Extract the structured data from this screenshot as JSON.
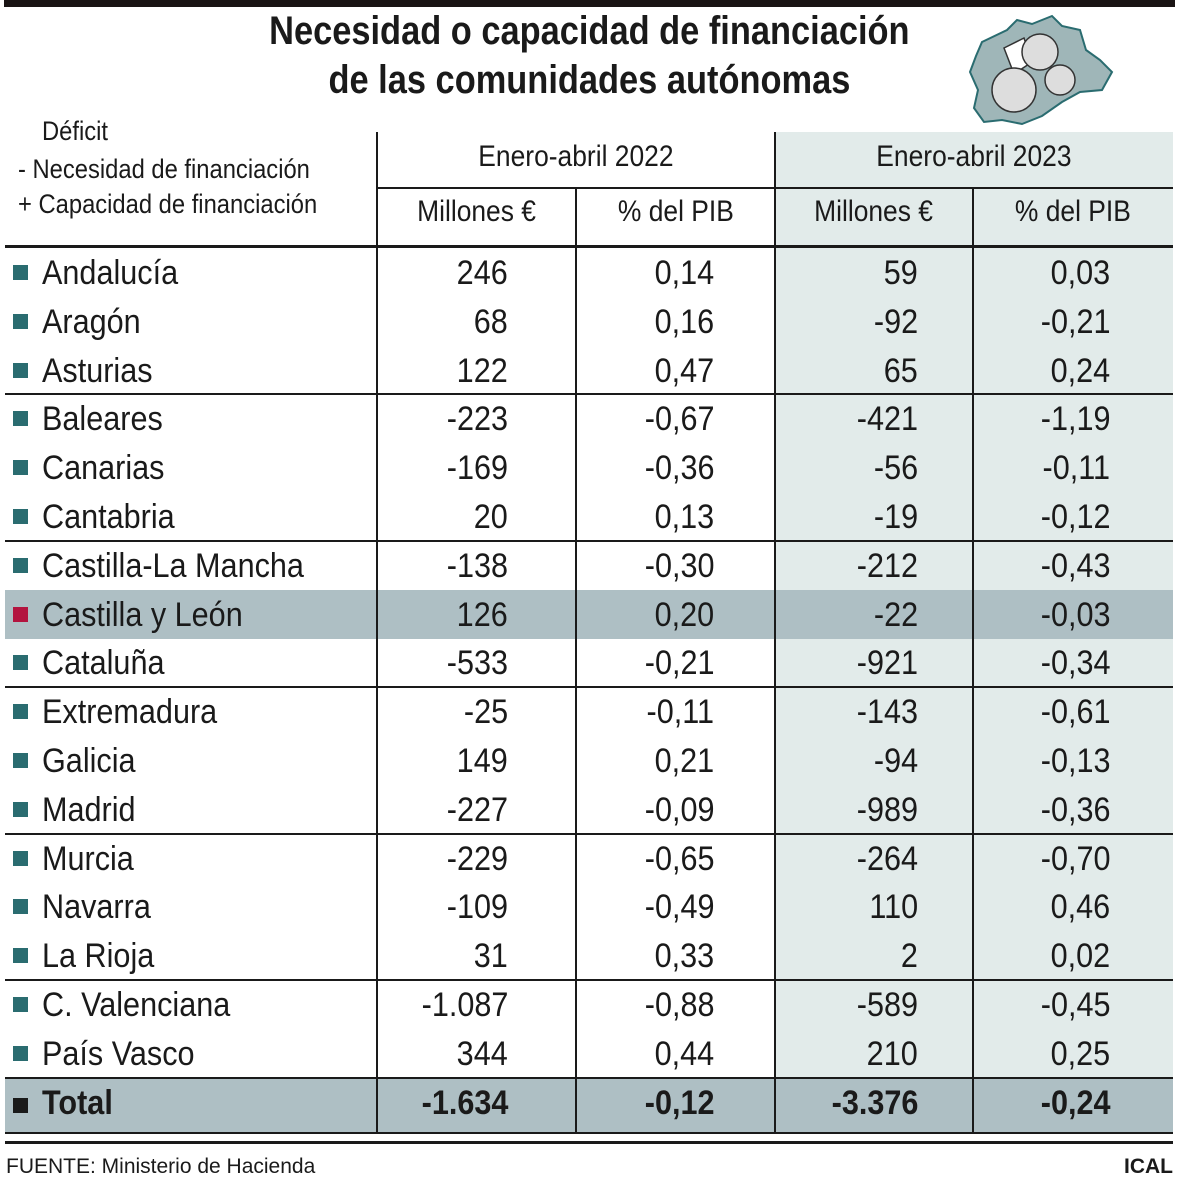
{
  "title": {
    "line1": "Necesidad o capacidad de financiación",
    "line2": "de las comunidades autónomas"
  },
  "legend": {
    "heading": "Déficit",
    "minus": "- Necesidad de financiación",
    "plus": "+ Capacidad de financiación"
  },
  "columns": {
    "period_2022": "Enero-abril 2022",
    "period_2023": "Enero-abril 2023",
    "millions": "Millones €",
    "pct_gdp": "% del PIB"
  },
  "colors": {
    "marker": "#2a6c70",
    "highlight_marker": "#b3143f",
    "total_marker": "#1a1a1a",
    "highlight_row": "#aebfc4",
    "col_2023_bg": "#e2ebea"
  },
  "chart_data": {
    "type": "table",
    "title": "Necesidad o capacidad de financiación de las comunidades autónomas",
    "columns": [
      "",
      "Enero-abril 2022 Millones €",
      "Enero-abril 2022 % del PIB",
      "Enero-abril 2023 Millones €",
      "Enero-abril 2023 % del PIB"
    ],
    "rows": [
      {
        "name": "Andalucía",
        "m22": "246",
        "p22": "0,14",
        "m23": "59",
        "p23": "0,03"
      },
      {
        "name": "Aragón",
        "m22": "68",
        "p22": "0,16",
        "m23": "-92",
        "p23": "-0,21"
      },
      {
        "name": "Asturias",
        "m22": "122",
        "p22": "0,47",
        "m23": "65",
        "p23": "0,24"
      },
      {
        "name": "Baleares",
        "m22": "-223",
        "p22": "-0,67",
        "m23": "-421",
        "p23": "-1,19"
      },
      {
        "name": "Canarias",
        "m22": "-169",
        "p22": "-0,36",
        "m23": "-56",
        "p23": "-0,11"
      },
      {
        "name": "Cantabria",
        "m22": "20",
        "p22": "0,13",
        "m23": "-19",
        "p23": "-0,12"
      },
      {
        "name": "Castilla-La Mancha",
        "m22": "-138",
        "p22": "-0,30",
        "m23": "-212",
        "p23": "-0,43"
      },
      {
        "name": "Castilla y León",
        "m22": "126",
        "p22": "0,20",
        "m23": "-22",
        "p23": "-0,03",
        "highlight": true
      },
      {
        "name": "Cataluña",
        "m22": "-533",
        "p22": "-0,21",
        "m23": "-921",
        "p23": "-0,34"
      },
      {
        "name": "Extremadura",
        "m22": "-25",
        "p22": "-0,11",
        "m23": "-143",
        "p23": "-0,61"
      },
      {
        "name": "Galicia",
        "m22": "149",
        "p22": "0,21",
        "m23": "-94",
        "p23": "-0,13"
      },
      {
        "name": "Madrid",
        "m22": "-227",
        "p22": "-0,09",
        "m23": "-989",
        "p23": "-0,36"
      },
      {
        "name": "Murcia",
        "m22": "-229",
        "p22": "-0,65",
        "m23": "-264",
        "p23": "-0,70"
      },
      {
        "name": "Navarra",
        "m22": "-109",
        "p22": "-0,49",
        "m23": "110",
        "p23": "0,46"
      },
      {
        "name": "La Rioja",
        "m22": "31",
        "p22": "0,33",
        "m23": "2",
        "p23": "0,02"
      },
      {
        "name": "C. Valenciana",
        "m22": "-1.087",
        "p22": "-0,88",
        "m23": "-589",
        "p23": "-0,45"
      },
      {
        "name": "País Vasco",
        "m22": "344",
        "p22": "0,44",
        "m23": "210",
        "p23": "0,25"
      }
    ],
    "total": {
      "name": "Total",
      "m22": "-1.634",
      "p22": "-0,12",
      "m23": "-3.376",
      "p23": "-0,24"
    }
  },
  "footer": {
    "source": "FUENTE: Ministerio de Hacienda",
    "credit": "ICAL"
  }
}
